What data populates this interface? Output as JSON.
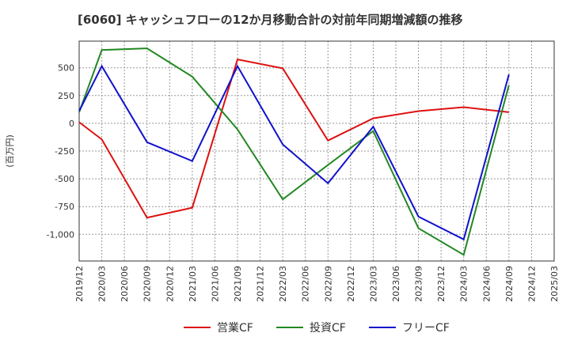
{
  "chart_data": {
    "type": "line",
    "title": "[6060]  キャッシュフローの12か月移動合計の対前年同期増減額の推移",
    "ylabel": "(百万円)",
    "xlabel": "",
    "ylim": [
      -1240,
      740
    ],
    "yticks": [
      500,
      250,
      0,
      -250,
      -500,
      -750,
      -1000
    ],
    "ytick_labels": [
      "500",
      "250",
      "0",
      "-250",
      "-500",
      "-750",
      "-1,000"
    ],
    "categories": [
      "2019/12",
      "2020/03",
      "2020/06",
      "2020/09",
      "2020/12",
      "2021/03",
      "2021/06",
      "2021/09",
      "2021/12",
      "2022/03",
      "2022/06",
      "2022/09",
      "2022/12",
      "2023/03",
      "2023/06",
      "2023/09",
      "2023/12",
      "2024/03",
      "2024/06",
      "2024/09",
      "2024/12",
      "2025/03"
    ],
    "grid": true,
    "legend_position": "bottom",
    "series": [
      {
        "name": "営業CF",
        "color": "#dd1111",
        "values": [
          10,
          -145,
          null,
          -850,
          null,
          -760,
          null,
          575,
          null,
          495,
          null,
          -155,
          null,
          45,
          null,
          110,
          null,
          145,
          null,
          100,
          null,
          null
        ]
      },
      {
        "name": "投資CF",
        "color": "#228822",
        "values": [
          100,
          660,
          null,
          675,
          null,
          420,
          null,
          -55,
          null,
          -685,
          null,
          -375,
          null,
          -70,
          null,
          -945,
          null,
          -1185,
          null,
          345,
          null,
          null
        ]
      },
      {
        "name": "フリーCF",
        "color": "#1111cc",
        "values": [
          110,
          515,
          null,
          -170,
          null,
          -340,
          null,
          515,
          null,
          -190,
          null,
          -540,
          null,
          -30,
          null,
          -840,
          null,
          -1045,
          null,
          440,
          null,
          null
        ]
      }
    ]
  }
}
